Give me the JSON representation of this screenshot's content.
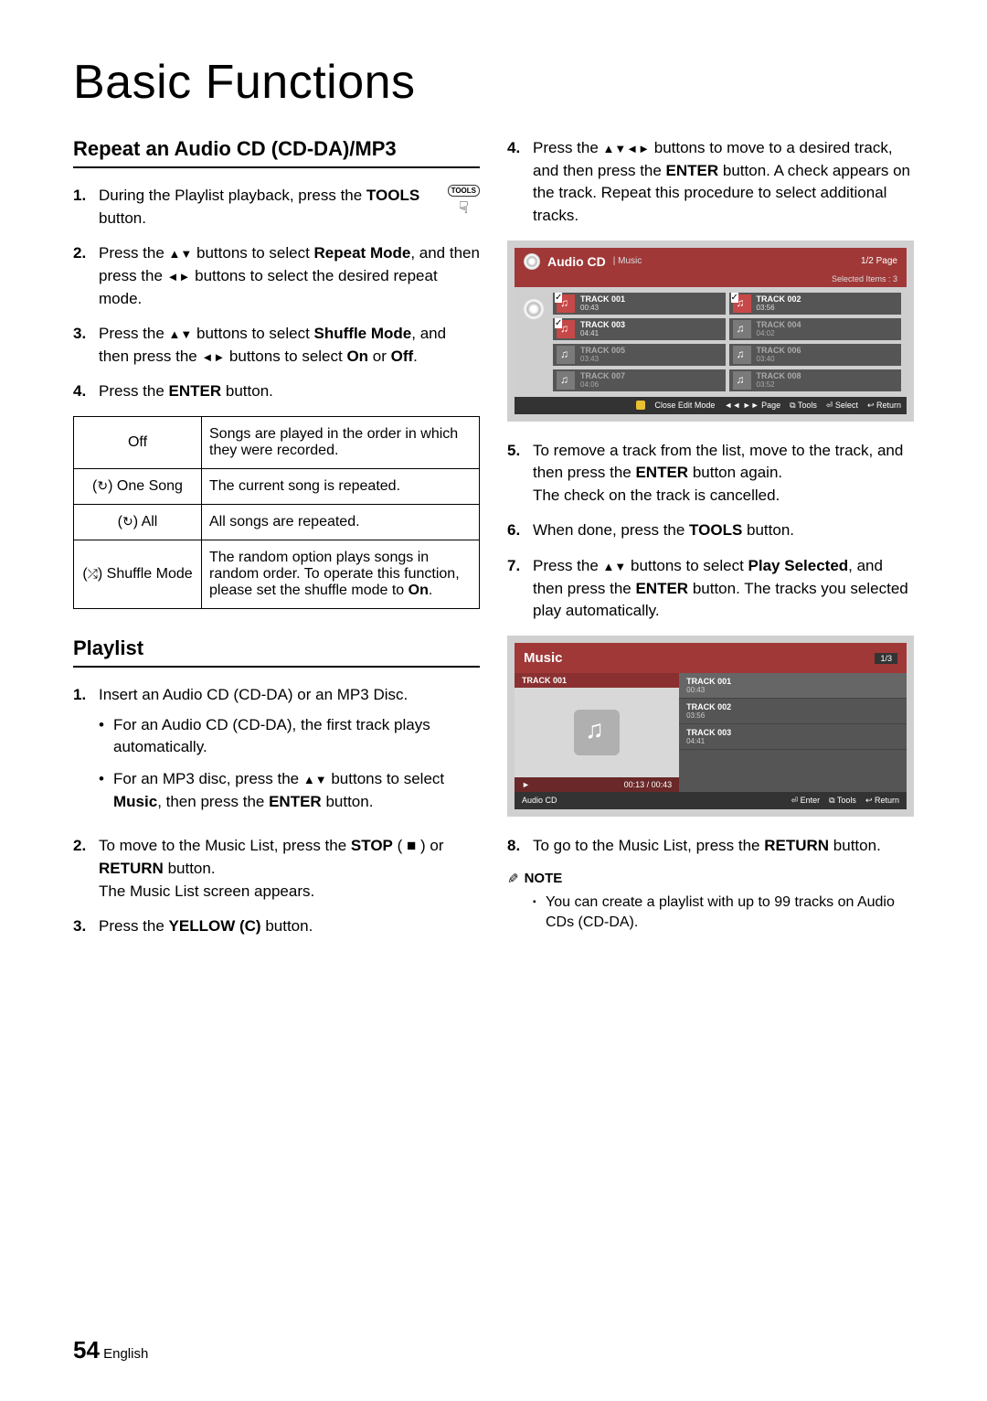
{
  "page_title": "Basic Functions",
  "section1_title": "Repeat an Audio CD (CD-DA)/MP3",
  "section2_title": "Playlist",
  "tools_label": "TOOLS",
  "left_steps_a": [
    {
      "n": "1.",
      "html": "During the Playlist playback, press the <span class='bold'>TOOLS</span> button."
    },
    {
      "n": "2.",
      "html": "Press the <span class='tri'>▲▼</span> buttons to select <span class='bold'>Repeat Mode</span>, and then press the <span class='tri'>◄►</span> buttons to select the desired repeat mode."
    },
    {
      "n": "3.",
      "html": "Press the <span class='tri'>▲▼</span> buttons to select <span class='bold'>Shuffle Mode</span>, and then press the <span class='tri'>◄►</span> buttons to select <span class='bold'>On</span> or <span class='bold'>Off</span>."
    },
    {
      "n": "4.",
      "html": "Press the <span class='bold'>ENTER</span> button."
    }
  ],
  "repeat_table": [
    {
      "label": "Off",
      "desc": "Songs are played in the order in which they were recorded."
    },
    {
      "label": "(<span class='repicon'>↻</span>) One Song",
      "desc": "The current song is repeated."
    },
    {
      "label": "(<span class='repicon'>↻</span>) All",
      "desc": "All songs are repeated."
    },
    {
      "label": "(<span class='repicon'>⤮</span>) Shuffle Mode",
      "desc": "The random option plays songs in random order. To operate this function, please set the shuffle mode to <span class='bold'>On</span>."
    }
  ],
  "left_steps_b": [
    {
      "n": "1.",
      "html": "Insert an Audio CD (CD-DA) or an MP3 Disc.",
      "sub": [
        "For an Audio CD (CD-DA), the first track plays automatically.",
        "For an MP3 disc, press the <span class='tri'>▲▼</span> buttons to select <span class='bold'>Music</span>, then press the <span class='bold'>ENTER</span> button."
      ]
    },
    {
      "n": "2.",
      "html": "To move to the Music List, press the <span class='bold'>STOP</span> ( ■ ) or <span class='bold'>RETURN</span> button.<br>The Music List screen appears."
    },
    {
      "n": "3.",
      "html": "Press the <span class='bold'>YELLOW (C)</span> button."
    }
  ],
  "right_steps_a": [
    {
      "n": "4.",
      "html": "Press the <span class='tri'>▲▼◄►</span> buttons to move to a desired track, and then press the <span class='bold'>ENTER</span> button. A check appears on the track. Repeat this procedure to select additional tracks."
    }
  ],
  "cd_shot": {
    "title": "Audio CD",
    "subtitle": "| Music",
    "page_ind": "1/2 Page",
    "selected": "Selected Items : 3",
    "tracks": [
      {
        "name": "TRACK 001",
        "dur": "00:43",
        "sel": true,
        "dim": false
      },
      {
        "name": "TRACK 002",
        "dur": "03:56",
        "sel": true,
        "dim": false
      },
      {
        "name": "TRACK 003",
        "dur": "04:41",
        "sel": true,
        "dim": false
      },
      {
        "name": "TRACK 004",
        "dur": "04:02",
        "sel": false,
        "dim": true
      },
      {
        "name": "TRACK 005",
        "dur": "03:43",
        "sel": false,
        "dim": true
      },
      {
        "name": "TRACK 006",
        "dur": "03:40",
        "sel": false,
        "dim": true
      },
      {
        "name": "TRACK 007",
        "dur": "04:06",
        "sel": false,
        "dim": true
      },
      {
        "name": "TRACK 008",
        "dur": "03:52",
        "sel": false,
        "dim": true
      }
    ],
    "footer": {
      "close": "Close Edit Mode",
      "page": "Page",
      "tools": "Tools",
      "select": "Select",
      "ret": "Return"
    }
  },
  "right_steps_b": [
    {
      "n": "5.",
      "html": "To remove a track from the list, move to the track, and then press the <span class='bold'>ENTER</span> button again.<br>The check on the track is cancelled."
    },
    {
      "n": "6.",
      "html": "When done, press the <span class='bold'>TOOLS</span> button."
    },
    {
      "n": "7.",
      "html": "Press the <span class='tri'>▲▼</span> buttons to select <span class='bold'>Play Selected</span>, and then press the <span class='bold'>ENTER</span> button. The tracks you selected play automatically."
    }
  ],
  "music_shot": {
    "title": "Music",
    "page": "1/3",
    "now": "TRACK 001",
    "time": "00:13 / 00:43",
    "list": [
      {
        "name": "TRACK 001",
        "dur": "00:43",
        "hl": true
      },
      {
        "name": "TRACK 002",
        "dur": "03:56",
        "hl": false
      },
      {
        "name": "TRACK 003",
        "dur": "04:41",
        "hl": false
      }
    ],
    "footer": {
      "src": "Audio CD",
      "enter": "Enter",
      "tools": "Tools",
      "ret": "Return"
    }
  },
  "right_steps_c": [
    {
      "n": "8.",
      "html": "To go to the Music List, press the <span class='bold'>RETURN</span> button."
    }
  ],
  "note_label": "NOTE",
  "note_text": "You can create a playlist with up to 99 tracks on Audio CDs (CD-DA).",
  "page_num": "54",
  "page_lang": "English"
}
